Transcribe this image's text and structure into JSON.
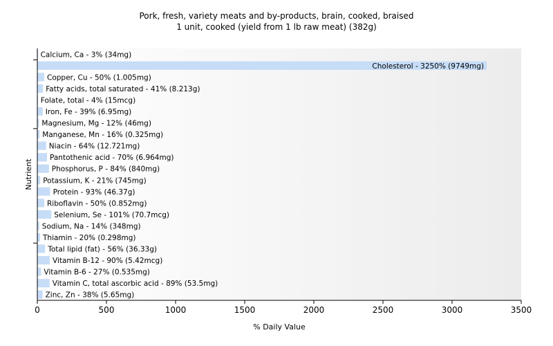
{
  "chart_data": {
    "type": "bar",
    "orientation": "horizontal",
    "title": "Pork, fresh, variety meats and by-products, brain, cooked, braised",
    "subtitle": "1 unit, cooked (yield from 1 lb raw meat) (382g)",
    "xlabel": "% Daily Value",
    "ylabel": "Nutrient",
    "xlim": [
      0,
      3500
    ],
    "xticks": [
      0,
      500,
      1000,
      1500,
      2000,
      2500,
      3000,
      3500
    ],
    "bar_color": "#c6dcf7",
    "categories": [
      "Calcium, Ca",
      "Cholesterol",
      "Copper, Cu",
      "Fatty acids, total saturated",
      "Folate, total",
      "Iron, Fe",
      "Magnesium, Mg",
      "Manganese, Mn",
      "Niacin",
      "Pantothenic acid",
      "Phosphorus, P",
      "Potassium, K",
      "Protein",
      "Riboflavin",
      "Selenium, Se",
      "Sodium, Na",
      "Thiamin",
      "Total lipid (fat)",
      "Vitamin B-12",
      "Vitamin B-6",
      "Vitamin C, total ascorbic acid",
      "Zinc, Zn"
    ],
    "values": [
      3,
      3250,
      50,
      41,
      4,
      39,
      12,
      16,
      64,
      70,
      84,
      21,
      93,
      50,
      101,
      14,
      20,
      56,
      90,
      27,
      89,
      38
    ],
    "labels": [
      "Calcium, Ca - 3% (34mg)",
      "Cholesterol - 3250% (9749mg)",
      "Copper, Cu - 50% (1.005mg)",
      "Fatty acids, total saturated - 41% (8.213g)",
      "Folate, total - 4% (15mcg)",
      "Iron, Fe - 39% (6.95mg)",
      "Magnesium, Mg - 12% (46mg)",
      "Manganese, Mn - 16% (0.325mg)",
      "Niacin - 64% (12.721mg)",
      "Pantothenic acid - 70% (6.964mg)",
      "Phosphorus, P - 84% (840mg)",
      "Potassium, K - 21% (745mg)",
      "Protein - 93% (46.37g)",
      "Riboflavin - 50% (0.852mg)",
      "Selenium, Se - 101% (70.7mcg)",
      "Sodium, Na - 14% (348mg)",
      "Thiamin - 20% (0.298mg)",
      "Total lipid (fat) - 56% (36.33g)",
      "Vitamin B-12 - 90% (5.42mcg)",
      "Vitamin B-6 - 27% (0.535mg)",
      "Vitamin C, total ascorbic acid - 89% (53.5mg)",
      "Zinc, Zn - 38% (5.65mg)"
    ]
  }
}
